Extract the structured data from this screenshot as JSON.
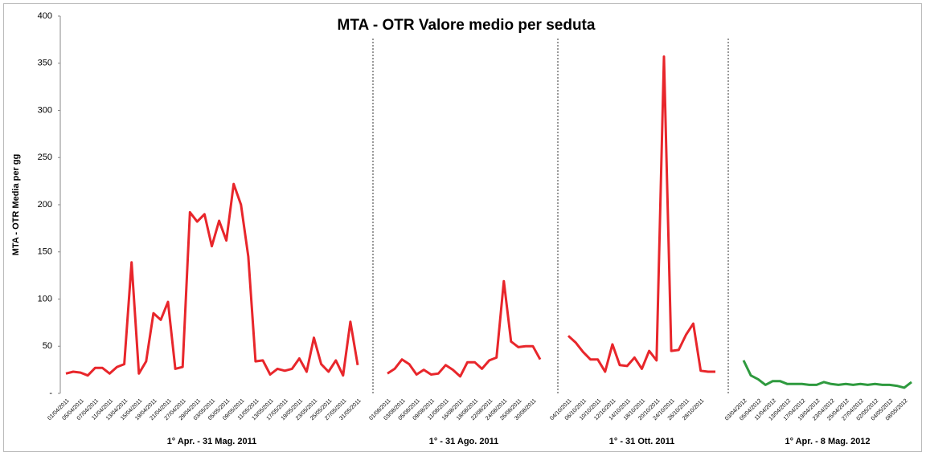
{
  "chart_data": {
    "type": "line",
    "title": "MTA - OTR Valore medio per seduta",
    "y_label": "MTA - OTR Media per gg",
    "ylim": [
      0,
      400
    ],
    "yticks": [
      {
        "value": 0,
        "label": "-"
      },
      50,
      100,
      150,
      200,
      250,
      300,
      350,
      400
    ],
    "series": [
      {
        "name": "1° Apr. - 31 Mag. 2011",
        "color": "#e8262b",
        "categories": [
          "01/04/2011",
          null,
          "05/04/2011",
          null,
          "07/04/2011",
          null,
          "11/04/2011",
          null,
          "13/04/2011",
          null,
          "15/04/2011",
          null,
          "19/04/2011",
          null,
          "21/04/2011",
          null,
          "27/04/2011",
          null,
          "29/04/2011",
          null,
          "03/05/2011",
          null,
          "05/05/2011",
          null,
          "09/05/2011",
          null,
          "11/05/2011",
          null,
          "13/05/2011",
          null,
          "17/05/2011",
          null,
          "19/05/2011",
          null,
          "23/05/2011",
          null,
          "25/05/2011",
          null,
          "27/05/2011",
          null,
          "31/05/2011"
        ],
        "values": [
          21,
          23,
          22,
          19,
          27,
          27,
          21,
          28,
          31,
          139,
          21,
          34,
          85,
          78,
          97,
          26,
          28,
          192,
          182,
          190,
          156,
          183,
          162,
          222,
          200,
          145,
          34,
          35,
          20,
          26,
          24,
          26,
          37,
          23,
          59,
          31,
          23,
          35,
          19,
          76,
          30
        ]
      },
      {
        "name": "1° - 31 Ago. 2011",
        "color": "#e8262b",
        "categories": [
          "01/08/2011",
          null,
          "03/08/2011",
          null,
          "05/08/2011",
          null,
          "09/08/2011",
          null,
          "11/08/2011",
          null,
          "16/08/2011",
          null,
          "18/08/2011",
          null,
          "22/08/2011",
          null,
          "24/08/2011",
          null,
          "26/08/2011",
          null,
          "30/08/2011",
          null
        ],
        "values": [
          21,
          26,
          36,
          31,
          20,
          25,
          20,
          21,
          30,
          25,
          18,
          33,
          33,
          26,
          35,
          38,
          119,
          55,
          49,
          50,
          50,
          36
        ]
      },
      {
        "name": "1° - 31 Ott. 2011",
        "color": "#e8262b",
        "categories": [
          "04/10/2011",
          null,
          "06/10/2011",
          null,
          "10/10/2011",
          null,
          "12/10/2011",
          null,
          "14/10/2011",
          null,
          "18/10/2011",
          null,
          "20/10/2011",
          null,
          "24/10/2011",
          null,
          "26/10/2011",
          null,
          "28/10/2011",
          null,
          null
        ],
        "values": [
          61,
          54,
          44,
          36,
          36,
          23,
          52,
          30,
          29,
          38,
          26,
          45,
          35,
          357,
          45,
          46,
          62,
          74,
          24,
          23,
          23
        ]
      },
      {
        "name": "1° Apr. - 8 Mag. 2012",
        "color": "#2e9a3e",
        "categories": [
          "03/04/2012",
          null,
          "05/04/2012",
          null,
          "11/04/2012",
          null,
          "13/04/2012",
          null,
          "17/04/2012",
          null,
          "19/04/2012",
          null,
          "23/04/2012",
          null,
          "25/04/2012",
          null,
          "27/04/2012",
          null,
          "02/05/2012",
          null,
          "04/05/2012",
          null,
          "08/05/2012",
          null
        ],
        "values": [
          35,
          19,
          15,
          9,
          13,
          13,
          10,
          10,
          10,
          9,
          9,
          12,
          10,
          9,
          10,
          9,
          10,
          9,
          10,
          9,
          9,
          8,
          6,
          12
        ]
      }
    ]
  }
}
